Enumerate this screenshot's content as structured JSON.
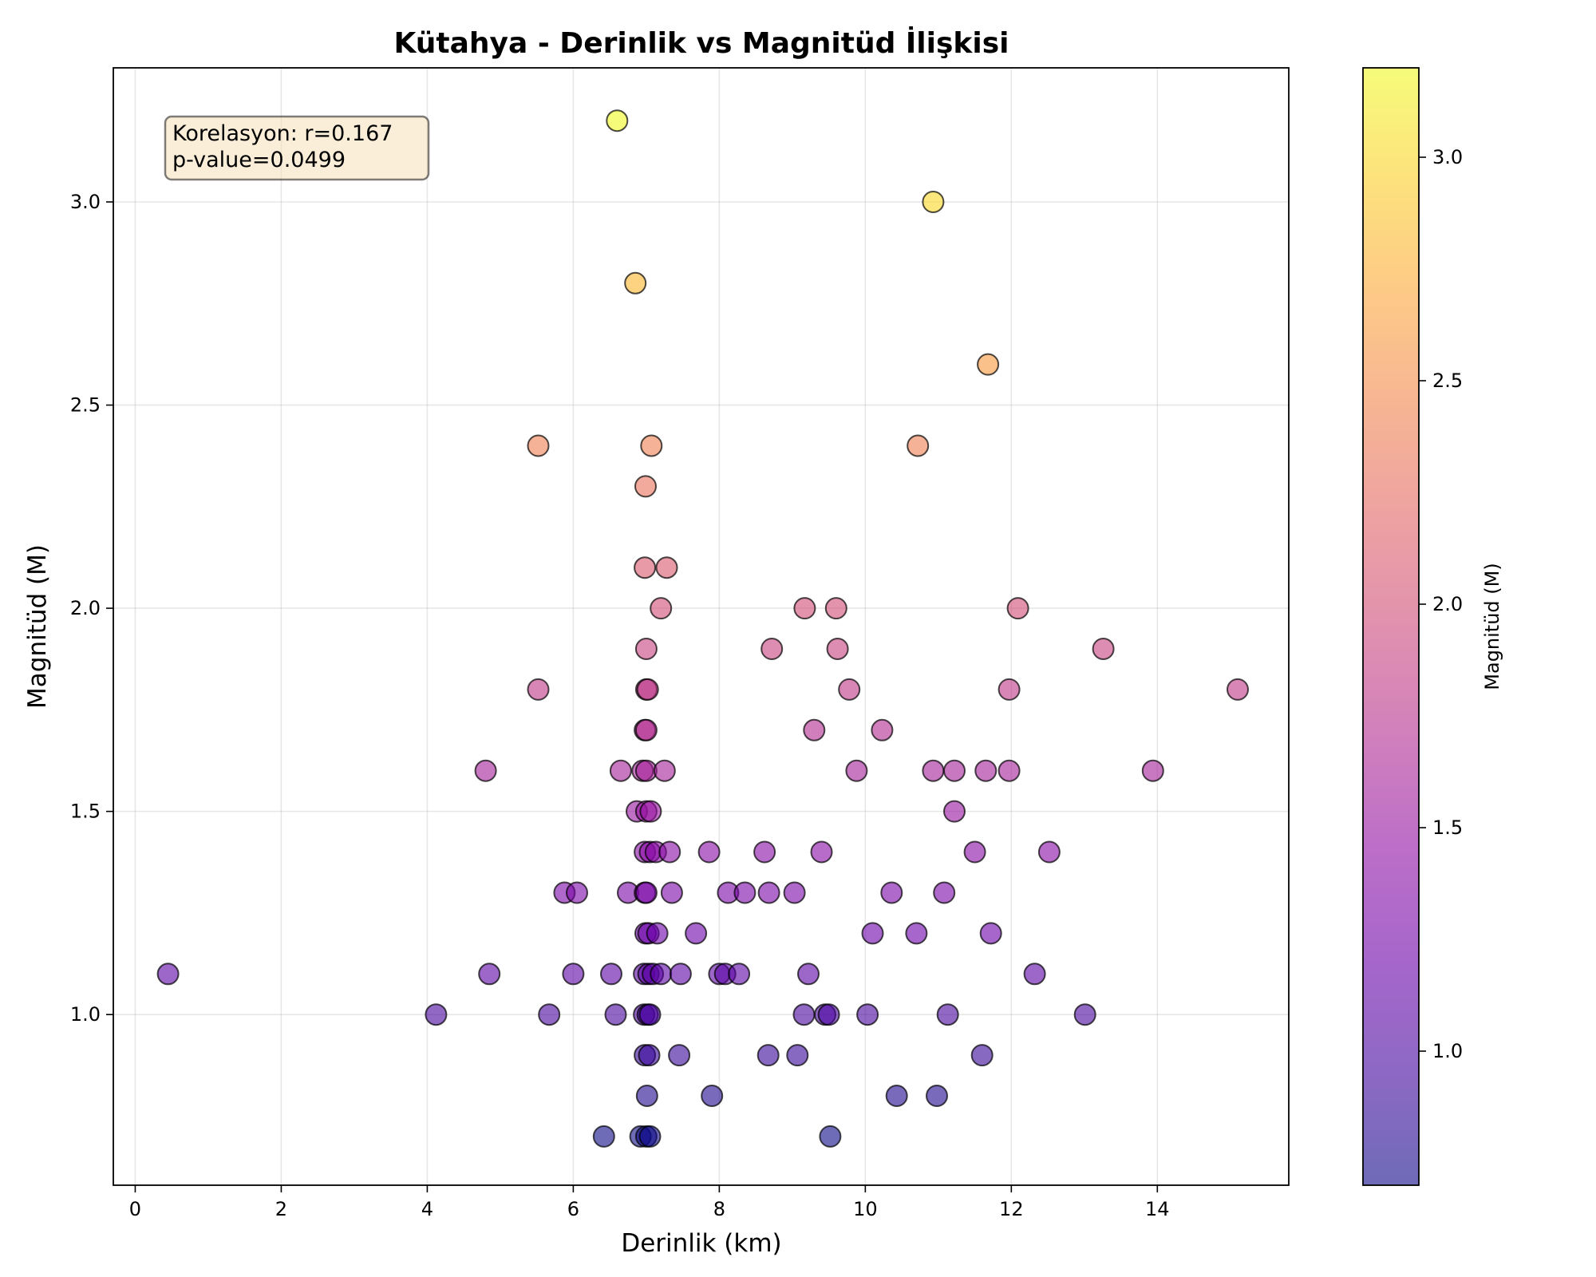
{
  "chart_data": {
    "type": "scatter",
    "title": "Kütahya - Derinlik vs Magnitüd İlişkisi",
    "xlabel": "Derinlik (km)",
    "ylabel": "Magnitüd (M)",
    "xlim": [
      -0.3,
      15.8
    ],
    "ylim": [
      0.58,
      3.33
    ],
    "xticks": [
      "0",
      "2",
      "4",
      "6",
      "8",
      "10",
      "12",
      "14"
    ],
    "yticks": [
      "1.0",
      "1.5",
      "2.0",
      "2.5",
      "3.0"
    ],
    "grid": true,
    "colormap": "plasma",
    "colorbar": {
      "label": "Magnitüd (M)",
      "range": [
        0.7,
        3.2
      ],
      "ticks": [
        "1.0",
        "1.5",
        "2.0",
        "2.5",
        "3.0"
      ]
    },
    "annotation": {
      "line1": "Korelasyon: r=0.167",
      "line2": "p-value=0.0499"
    },
    "x": [
      6.6,
      10.93,
      6.85,
      11.68,
      5.52,
      7.07,
      10.72,
      6.99,
      6.98,
      7.28,
      7.2,
      9.17,
      9.6,
      12.09,
      7.0,
      8.72,
      9.62,
      13.26,
      5.52,
      7.0,
      7.02,
      9.78,
      11.97,
      15.1,
      6.98,
      7.0,
      9.3,
      10.23,
      4.8,
      6.65,
      6.95,
      7.0,
      7.25,
      9.88,
      10.93,
      11.22,
      11.65,
      11.97,
      13.94,
      6.87,
      7.0,
      7.06,
      11.22,
      6.98,
      7.05,
      7.13,
      7.32,
      7.86,
      8.62,
      9.4,
      11.5,
      12.52,
      5.88,
      6.05,
      6.75,
      6.98,
      7.0,
      7.35,
      8.12,
      8.35,
      8.68,
      9.03,
      10.36,
      11.08,
      6.99,
      7.03,
      7.15,
      7.68,
      10.1,
      10.7,
      11.72,
      0.45,
      4.85,
      6.0,
      6.52,
      6.97,
      7.03,
      7.09,
      7.2,
      7.47,
      8.0,
      8.08,
      8.27,
      9.22,
      12.32,
      4.12,
      5.67,
      6.58,
      6.97,
      7.02,
      7.05,
      9.16,
      9.45,
      9.5,
      10.03,
      11.13,
      13.01,
      6.98,
      7.04,
      7.45,
      8.67,
      9.07,
      11.6,
      7.01,
      7.9,
      10.43,
      10.98,
      6.42,
      6.92,
      7.0,
      7.05,
      9.52
    ],
    "y": [
      3.2,
      3.0,
      2.8,
      2.6,
      2.4,
      2.4,
      2.4,
      2.3,
      2.1,
      2.1,
      2.0,
      2.0,
      2.0,
      2.0,
      1.9,
      1.9,
      1.9,
      1.9,
      1.8,
      1.8,
      1.8,
      1.8,
      1.8,
      1.8,
      1.7,
      1.7,
      1.7,
      1.7,
      1.6,
      1.6,
      1.6,
      1.6,
      1.6,
      1.6,
      1.6,
      1.6,
      1.6,
      1.6,
      1.6,
      1.5,
      1.5,
      1.5,
      1.5,
      1.4,
      1.4,
      1.4,
      1.4,
      1.4,
      1.4,
      1.4,
      1.4,
      1.4,
      1.3,
      1.3,
      1.3,
      1.3,
      1.3,
      1.3,
      1.3,
      1.3,
      1.3,
      1.3,
      1.3,
      1.3,
      1.2,
      1.2,
      1.2,
      1.2,
      1.2,
      1.2,
      1.2,
      1.1,
      1.1,
      1.1,
      1.1,
      1.1,
      1.1,
      1.1,
      1.1,
      1.1,
      1.1,
      1.1,
      1.1,
      1.1,
      1.1,
      1.0,
      1.0,
      1.0,
      1.0,
      1.0,
      1.0,
      1.0,
      1.0,
      1.0,
      1.0,
      1.0,
      1.0,
      0.9,
      0.9,
      0.9,
      0.9,
      0.9,
      0.9,
      0.8,
      0.8,
      0.8,
      0.8,
      0.7,
      0.7,
      0.7,
      0.7,
      0.7
    ]
  }
}
